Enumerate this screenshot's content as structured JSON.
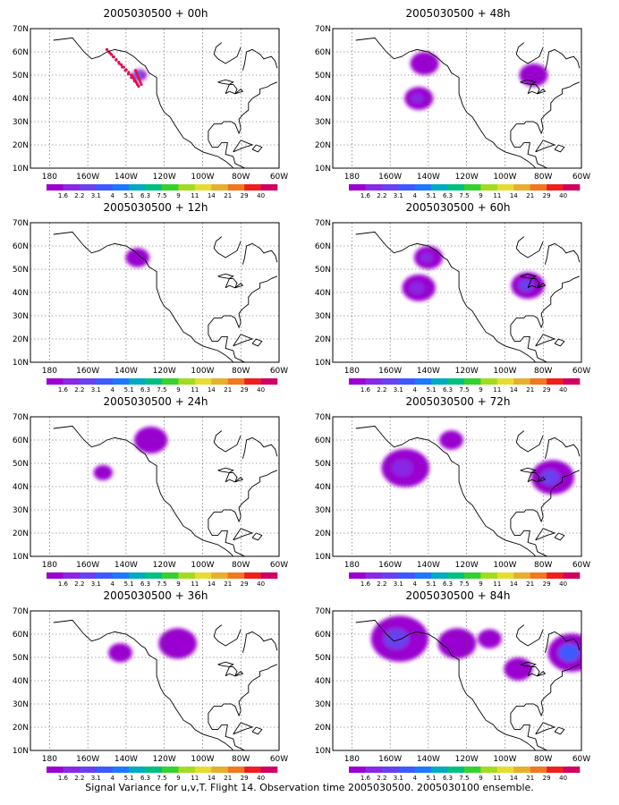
{
  "caption": "Signal Variance for u,v,T. Flight 14. Observation time 2005030500. 2005030100 ensemble.",
  "colorbar": {
    "labels": [
      "1.6",
      "2.2",
      "3.1",
      "4",
      "5.1",
      "6.3",
      "7.5",
      "9",
      "11",
      "14",
      "21",
      "29",
      "40"
    ],
    "colors": [
      "#9a00d0",
      "#8a28e6",
      "#6a40f0",
      "#3c5aff",
      "#1e78ff",
      "#00aabf",
      "#00c080",
      "#36d030",
      "#a2dc20",
      "#e6dc32",
      "#e6af2d",
      "#f07820",
      "#f01e1e",
      "#d00060"
    ]
  },
  "axes": {
    "y_ticks": [
      "10N",
      "20N",
      "30N",
      "40N",
      "50N",
      "60N",
      "70N"
    ],
    "x_ticks": [
      "180",
      "160W",
      "140W",
      "120W",
      "100W",
      "80W",
      "60W"
    ]
  },
  "chart_data": [
    {
      "type": "heatmap",
      "title": "2005030500 + 00h",
      "lon_range": [
        -190,
        -60
      ],
      "lat_range": [
        10,
        70
      ],
      "observation_points": true,
      "features": [
        {
          "lon": -133,
          "lat": 50,
          "level": 5,
          "radius": 3
        }
      ]
    },
    {
      "type": "heatmap",
      "title": "2005030500 + 48h",
      "lon_range": [
        -190,
        -60
      ],
      "lat_range": [
        10,
        70
      ],
      "features": [
        {
          "lon": -142,
          "lat": 55,
          "level": 1,
          "radius": 6
        },
        {
          "lon": -145,
          "lat": 40,
          "level": 2,
          "radius": 6
        },
        {
          "lon": -85,
          "lat": 50,
          "level": 1,
          "radius": 6
        }
      ]
    },
    {
      "type": "heatmap",
      "title": "2005030500 + 12h",
      "lon_range": [
        -190,
        -60
      ],
      "lat_range": [
        10,
        70
      ],
      "features": [
        {
          "lon": -134,
          "lat": 55,
          "level": 1,
          "radius": 5
        }
      ]
    },
    {
      "type": "heatmap",
      "title": "2005030500 + 60h",
      "lon_range": [
        -190,
        -60
      ],
      "lat_range": [
        10,
        70
      ],
      "features": [
        {
          "lon": -140,
          "lat": 55,
          "level": 2,
          "radius": 6
        },
        {
          "lon": -145,
          "lat": 42,
          "level": 2,
          "radius": 7
        },
        {
          "lon": -88,
          "lat": 43,
          "level": 3,
          "radius": 7
        }
      ]
    },
    {
      "type": "heatmap",
      "title": "2005030500 + 24h",
      "lon_range": [
        -190,
        -60
      ],
      "lat_range": [
        10,
        70
      ],
      "features": [
        {
          "lon": -127,
          "lat": 60,
          "level": 1,
          "radius": 7
        },
        {
          "lon": -152,
          "lat": 46,
          "level": 1,
          "radius": 4
        }
      ]
    },
    {
      "type": "heatmap",
      "title": "2005030500 + 72h",
      "lon_range": [
        -190,
        -60
      ],
      "lat_range": [
        10,
        70
      ],
      "features": [
        {
          "lon": -152,
          "lat": 48,
          "level": 2,
          "radius": 10
        },
        {
          "lon": -128,
          "lat": 60,
          "level": 1,
          "radius": 5
        },
        {
          "lon": -75,
          "lat": 44,
          "level": 3,
          "radius": 9
        }
      ]
    },
    {
      "type": "heatmap",
      "title": "2005030500 + 36h",
      "lon_range": [
        -190,
        -60
      ],
      "lat_range": [
        10,
        70
      ],
      "features": [
        {
          "lon": -143,
          "lat": 52,
          "level": 1,
          "radius": 5
        },
        {
          "lon": -113,
          "lat": 56,
          "level": 1,
          "radius": 8
        }
      ]
    },
    {
      "type": "heatmap",
      "title": "2005030500 + 84h",
      "lon_range": [
        -190,
        -60
      ],
      "lat_range": [
        10,
        70
      ],
      "features": [
        {
          "lon": -155,
          "lat": 58,
          "level": 3,
          "radius": 12
        },
        {
          "lon": -125,
          "lat": 56,
          "level": 1,
          "radius": 8
        },
        {
          "lon": -108,
          "lat": 58,
          "level": 1,
          "radius": 5
        },
        {
          "lon": -93,
          "lat": 45,
          "level": 1,
          "radius": 6
        },
        {
          "lon": -65,
          "lat": 52,
          "level": 4,
          "radius": 10
        }
      ]
    }
  ]
}
